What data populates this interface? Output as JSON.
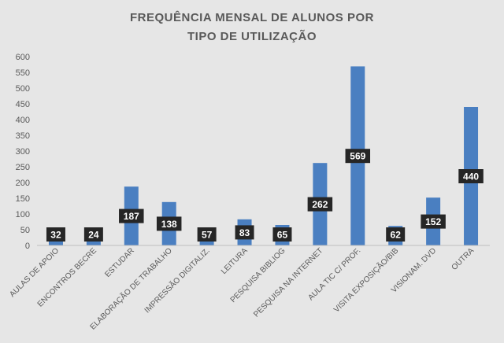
{
  "chart_data": {
    "type": "bar",
    "title_lines": [
      "FREQUÊNCIA  MENSAL DE ALUNOS  POR",
      "TIPO DE UTILIZAÇÃO"
    ],
    "categories": [
      "AULAS DE APOIO",
      "ENCONTROS BECRE",
      "ESTUDAR",
      "ELABORAÇÃO DE TRABALHO",
      "IMPRESSÃO DIGITALIZ.",
      "LEITURA",
      "PESQUISA BIBLIOG",
      "PESQUISA NA INTERNET",
      "AULA TIC C/ PROF.",
      "VISITA EXPOSIÇÃO/BIB",
      "VISIONAM. DVD",
      "OUTRA"
    ],
    "values": [
      32,
      24,
      187,
      138,
      57,
      83,
      65,
      262,
      569,
      62,
      152,
      440
    ],
    "ylim": [
      0,
      600
    ],
    "yticks": [
      0,
      50,
      100,
      150,
      200,
      250,
      300,
      350,
      400,
      450,
      500,
      550,
      600
    ],
    "grid": false,
    "bar_color": "#4a7fc1",
    "label_bg_color": "#262626",
    "label_text_color": "#ffffff"
  }
}
